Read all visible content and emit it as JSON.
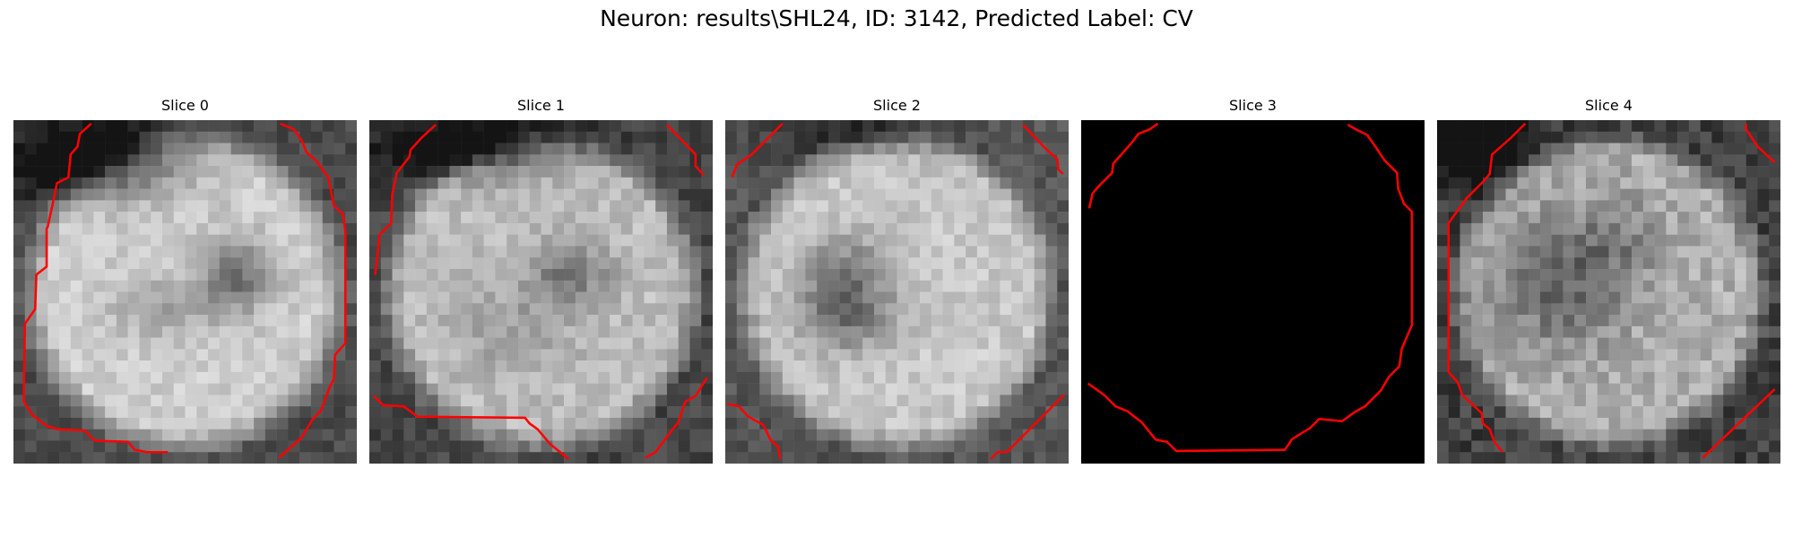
{
  "figure": {
    "title": "Neuron: results\\SHL24, ID: 3142, Predicted Label: CV"
  },
  "colors": {
    "background": "#ffffff",
    "contour": "#ff0000"
  },
  "slices": [
    {
      "title": "Slice 0",
      "image": "grayscale-roi"
    },
    {
      "title": "Slice 1",
      "image": "grayscale-roi"
    },
    {
      "title": "Slice 2",
      "image": "grayscale-roi"
    },
    {
      "title": "Slice 3",
      "image": "black"
    },
    {
      "title": "Slice 4",
      "image": "grayscale-roi"
    }
  ]
}
